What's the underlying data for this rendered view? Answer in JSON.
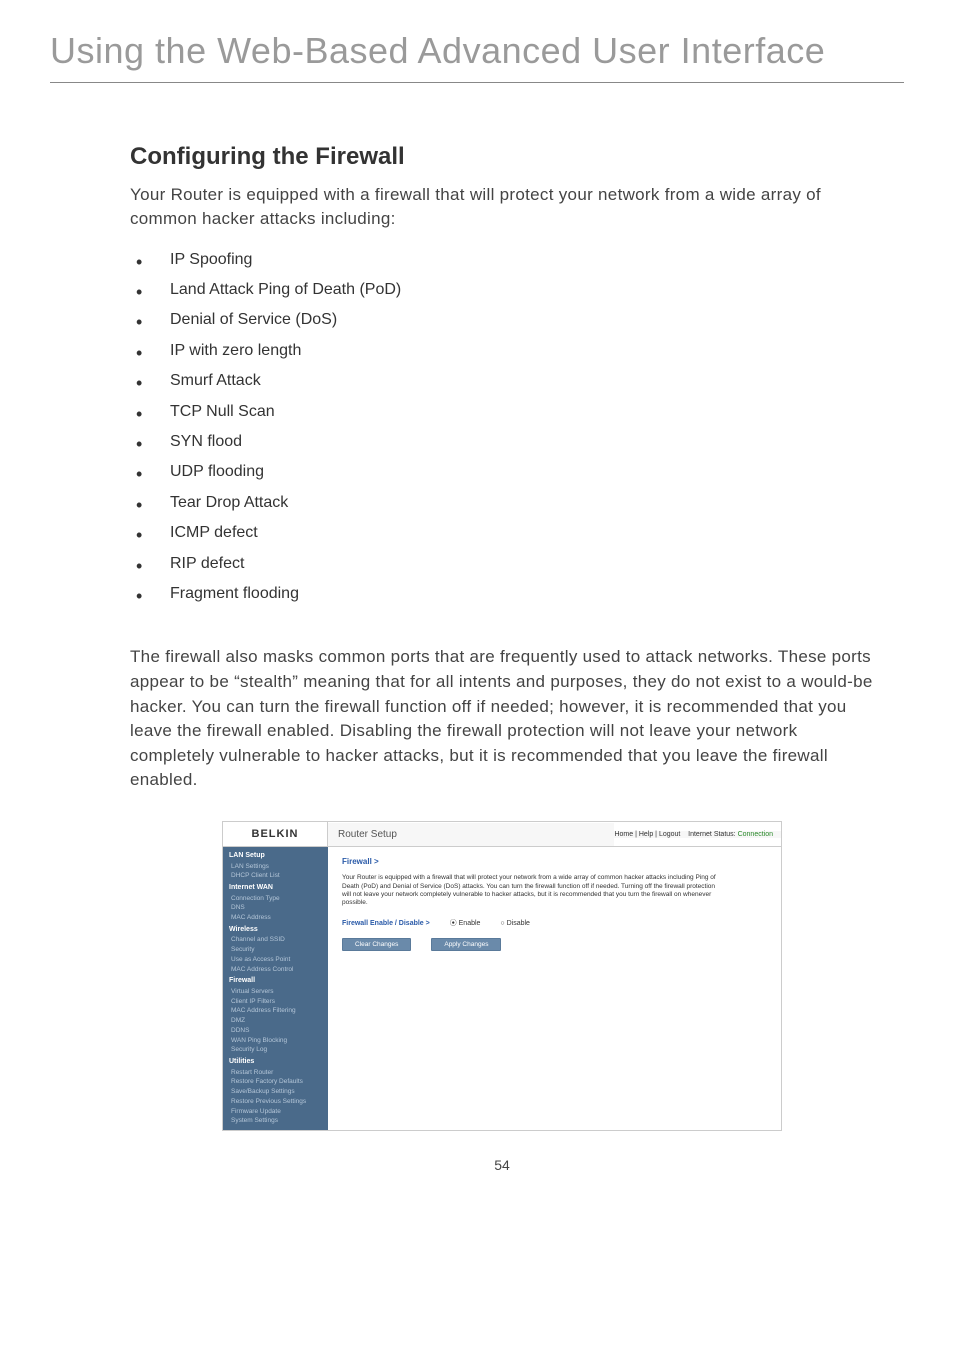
{
  "page": {
    "title": "Using the Web-Based Advanced User Interface",
    "number": "54",
    "colors": {
      "title_text": "#9a9a9a",
      "heading_text": "#333333",
      "body_text": "#444444",
      "rule": "#888888"
    }
  },
  "section": {
    "heading": "Configuring the Firewall",
    "intro": "Your Router is equipped with a firewall that will protect your network from a wide array of common hacker attacks including:",
    "bullets": [
      "IP Spoofing",
      "Land Attack Ping of Death (PoD)",
      "Denial of Service (DoS)",
      "IP with zero length",
      "Smurf Attack",
      "TCP Null Scan",
      "SYN flood",
      "UDP flooding",
      "Tear Drop Attack",
      "ICMP defect",
      "RIP defect",
      "Fragment flooding"
    ],
    "body": "The firewall also masks common ports that are frequently used to attack networks. These ports appear to be “stealth” meaning that for all intents and purposes, they do not exist to a would-be hacker. You can turn the firewall function off if needed; however, it is recommended that you leave the firewall enabled. Disabling the firewall protection will not leave your network completely vulnerable to hacker attacks, but it is recommended that you leave the firewall enabled."
  },
  "screenshot": {
    "brand": "BELKIN",
    "header_title": "Router Setup",
    "toplinks": {
      "links": "Home | Help | Logout",
      "status_label": "Internet Status:",
      "status_value": "Connection"
    },
    "sidebar": {
      "sections": [
        {
          "head": "LAN Setup",
          "items": [
            "LAN Settings",
            "DHCP Client List"
          ]
        },
        {
          "head": "Internet WAN",
          "items": [
            "Connection Type",
            "DNS",
            "MAC Address"
          ]
        },
        {
          "head": "Wireless",
          "items": [
            "Channel and SSID",
            "Security",
            "Use as Access Point",
            "MAC Address Control"
          ]
        },
        {
          "head": "Firewall",
          "active": true,
          "items": [
            "Virtual Servers",
            "Client IP Filters",
            "MAC Address Filtering",
            "DMZ",
            "DDNS",
            "WAN Ping Blocking",
            "Security Log"
          ]
        },
        {
          "head": "Utilities",
          "items": [
            "Restart Router",
            "Restore Factory Defaults",
            "Save/Backup Settings",
            "Restore Previous Settings",
            "Firmware Update",
            "System Settings"
          ]
        }
      ]
    },
    "main": {
      "breadcrumb": "Firewall >",
      "description": "Your Router is equipped with a firewall that will protect your network from a wide array of common hacker attacks including Ping of Death (PoD) and Denial of Service (DoS) attacks. You can turn the firewall function off if needed. Turning off the firewall protection will not leave your network completely vulnerable to hacker attacks, but it is recommended that you turn the firewall on whenever possible.",
      "form_label": "Firewall Enable / Disable >",
      "radio_enable": "Enable",
      "radio_disable": "Disable",
      "btn_clear": "Clear Changes",
      "btn_apply": "Apply Changes"
    },
    "colors": {
      "sidebar_bg": "#4a6a8a",
      "sidebar_text": "#b4c6d8",
      "sidebar_head": "#ffffff",
      "main_bg": "#ffffff",
      "link_blue": "#2a5aa8",
      "btn_bg": "#6a8aaa",
      "status_ok": "#2a8a2a"
    }
  }
}
